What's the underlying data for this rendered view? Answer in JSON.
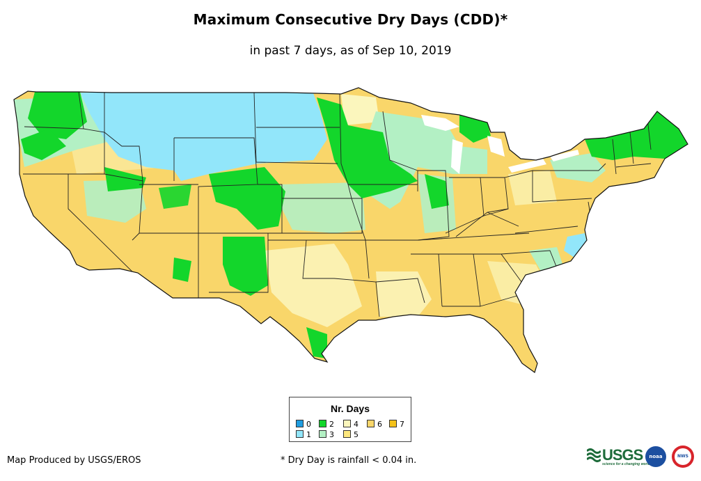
{
  "title": "Maximum Consecutive Dry Days (CDD)*",
  "subtitle": "in past 7 days, as of Sep 10, 2019",
  "legend": {
    "title": "Nr. Days",
    "items": [
      {
        "label": "0",
        "color": "#1f9de0"
      },
      {
        "label": "1",
        "color": "#92e6fa"
      },
      {
        "label": "2",
        "color": "#13d62b"
      },
      {
        "label": "3",
        "color": "#b3f0c4"
      },
      {
        "label": "4",
        "color": "#fbf6bd"
      },
      {
        "label": "5",
        "color": "#fce77d"
      },
      {
        "label": "6",
        "color": "#f9d66a"
      },
      {
        "label": "7",
        "color": "#f4c21a"
      }
    ]
  },
  "credit": "Map Produced by USGS/EROS",
  "footnote": "* Dry Day is rainfall < 0.04 in.",
  "logos": {
    "usgs_text": "USGS",
    "usgs_tagline": "science for a changing world",
    "noaa_text": "noaa",
    "nws_text": "NWS"
  }
}
